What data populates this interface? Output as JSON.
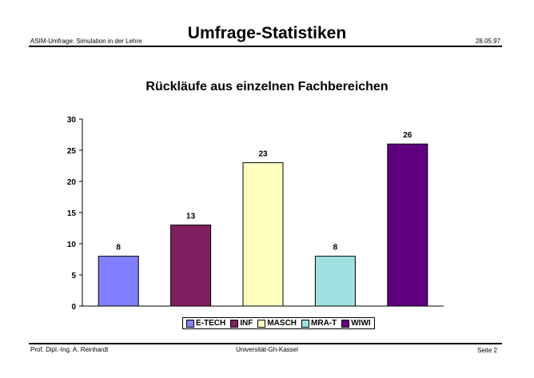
{
  "header": {
    "title": "Umfrage-Statistiken",
    "left": "ASIM-Umfrage: Simulation in der Lehre",
    "date": "28.05.97"
  },
  "footer": {
    "author": "Prof. Dipl.-Ing. A. Reinhardt",
    "university": "Universität-Gh-Kassel",
    "page": "Seite 2"
  },
  "chart_data": {
    "type": "bar",
    "title": "Rückläufe aus einzelnen Fachbereichen",
    "categories": [
      "E-TECH",
      "INF",
      "MASCH",
      "MRA-T",
      "WIWI"
    ],
    "values": [
      8,
      13,
      23,
      8,
      26
    ],
    "colors": [
      "#8080ff",
      "#801f5f",
      "#ffffc0",
      "#a0e0e0",
      "#600080"
    ],
    "ylim": [
      0,
      30
    ],
    "yticks": [
      0,
      5,
      10,
      15,
      20,
      25,
      30
    ],
    "grid": false,
    "legend": "bottom"
  }
}
